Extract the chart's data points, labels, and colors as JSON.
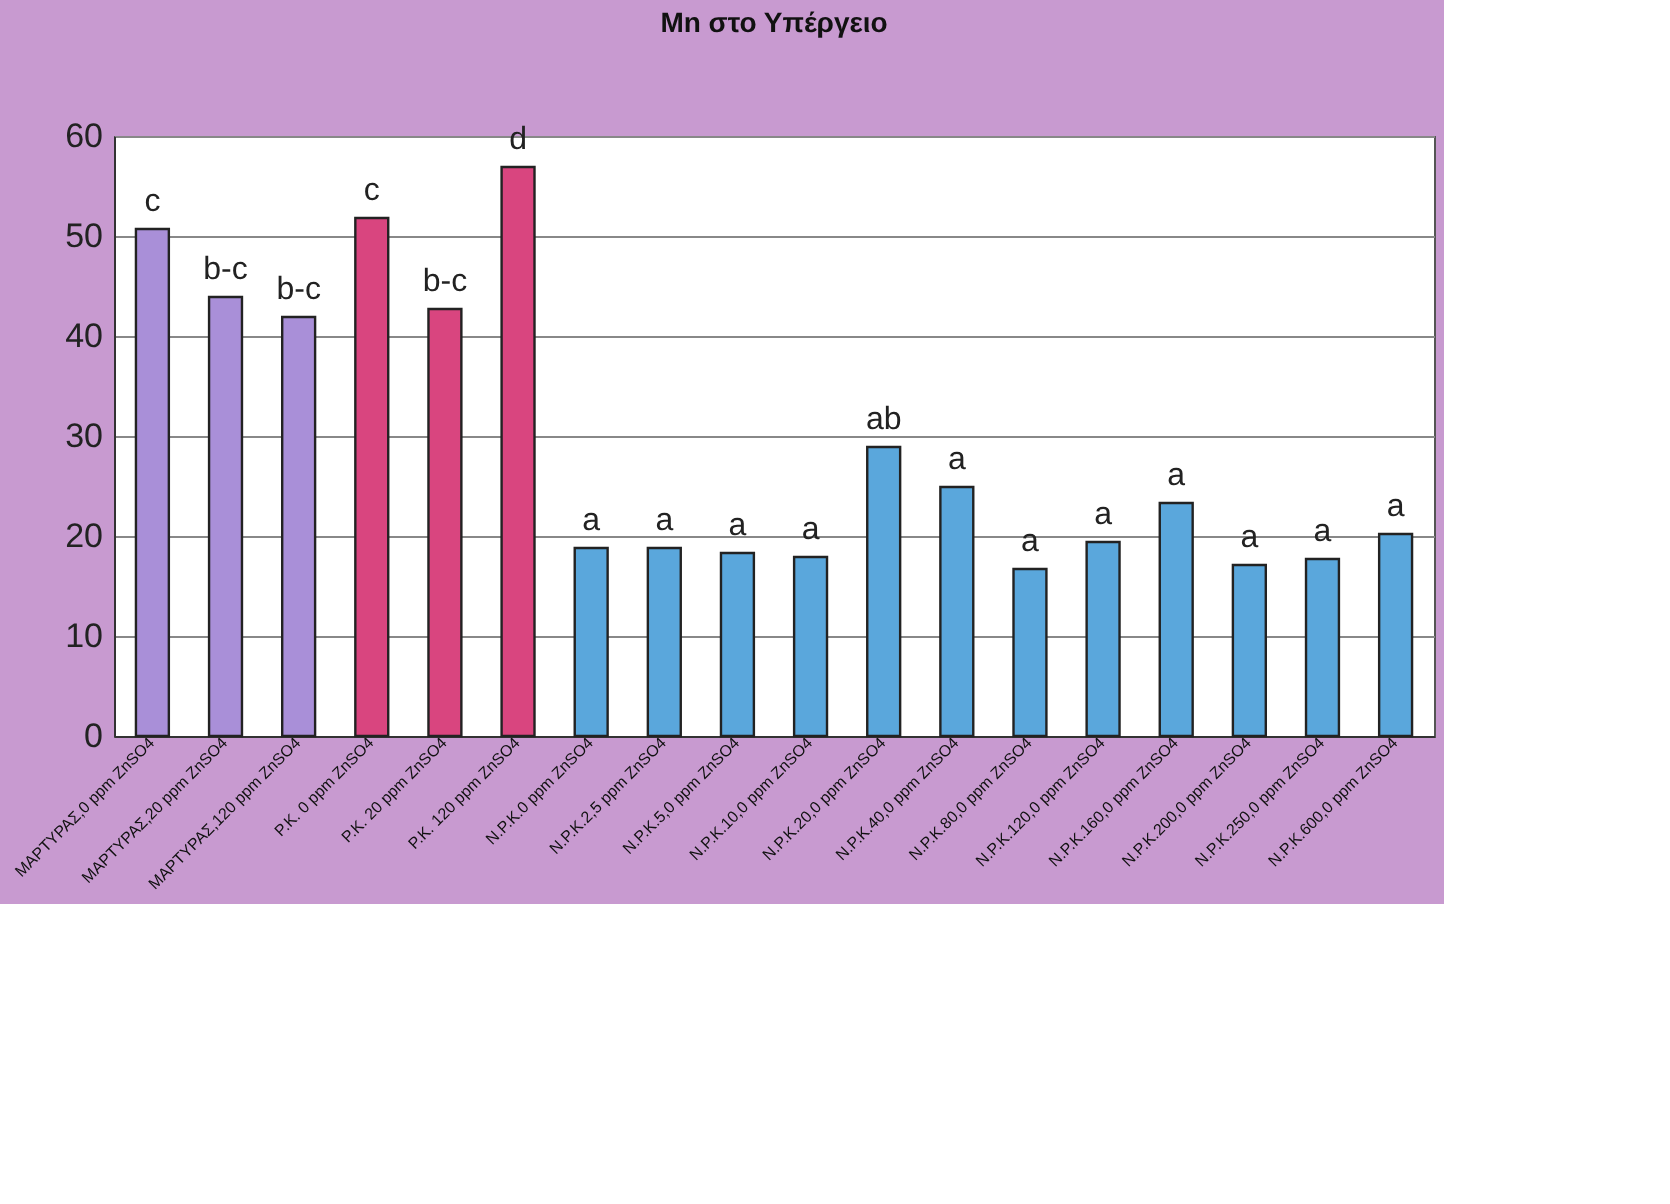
{
  "chart_data": {
    "type": "bar",
    "title": "Mn στο Υπέργειο",
    "categories": [
      "ΜΑΡΤΥΡΑΣ,0 ppm ZnSO4",
      "ΜΑΡΤΥΡΑΣ,20 ppm ZnSO4",
      "ΜΑΡΤΥΡΑΣ,120 ppm ZnSO4",
      "P.K. 0 ppm ZnSO4",
      "P.K. 20 ppm ZnSO4",
      "P.K. 120 ppm ZnSO4",
      "N.P.K.0 ppm ZnSO4",
      "N.P.K.2,5 ppm ZnSO4",
      "N.P.K.5,0 ppm ZnSO4",
      "N.P.K.10,0 ppm ZnSO4",
      "N.P.K.20,0 ppm ZnSO4",
      "N.P.K.40,0 ppm ZnSO4",
      "N.P.K.80,0 ppm ZnSO4",
      "N.P.K.120,0 ppm ZnSO4",
      "N.P.K.160,0 ppm ZnSO4",
      "N.P.K.200,0 ppm ZnSO4",
      "N.P.K.250,0 ppm ZnSO4",
      "N.P.K.600,0 ppm ZnSO4"
    ],
    "values": [
      50.7,
      43.9,
      41.9,
      51.8,
      42.7,
      56.9,
      18.8,
      18.8,
      18.3,
      17.9,
      28.9,
      24.9,
      16.7,
      19.4,
      23.3,
      17.1,
      17.7,
      20.2
    ],
    "colors": [
      "#a98fd8",
      "#a98fd8",
      "#a98fd8",
      "#d9457f",
      "#d9457f",
      "#d9457f",
      "#5aa7dc",
      "#5aa7dc",
      "#5aa7dc",
      "#5aa7dc",
      "#5aa7dc",
      "#5aa7dc",
      "#5aa7dc",
      "#5aa7dc",
      "#5aa7dc",
      "#5aa7dc",
      "#5aa7dc",
      "#5aa7dc"
    ],
    "value_labels": [
      "c",
      "b-c",
      "b-c",
      "c",
      "b-c",
      "d",
      "a",
      "a",
      "a",
      "a",
      "ab",
      "a",
      "a",
      "a",
      "a",
      "a",
      "a",
      "a"
    ],
    "ylim": [
      0,
      60
    ],
    "yticks": [
      0,
      10,
      20,
      30,
      40,
      50,
      60
    ],
    "grid": "y"
  }
}
